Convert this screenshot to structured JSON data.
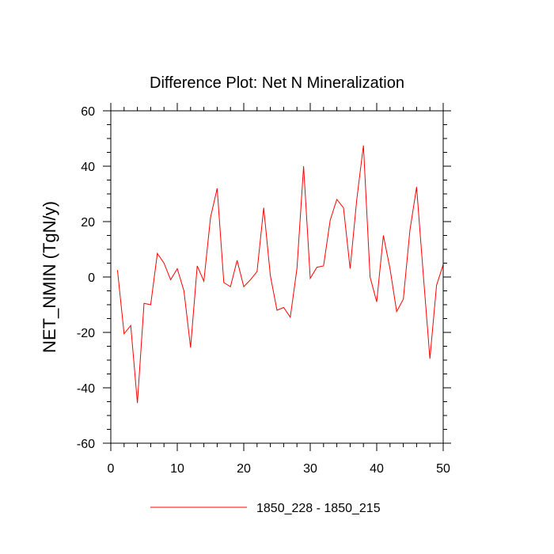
{
  "chart_data": {
    "type": "line",
    "title": "Difference Plot: Net N Mineralization",
    "xlabel": "",
    "ylabel": "NET_NMIN  (TgN/y)",
    "xlim": [
      0,
      50
    ],
    "ylim": [
      -60,
      60
    ],
    "x_ticks": [
      0,
      10,
      20,
      30,
      40,
      50
    ],
    "y_ticks": [
      -60,
      -40,
      -20,
      0,
      20,
      40,
      60
    ],
    "x_minor_step": 2,
    "y_minor_step": 5,
    "legend_position": "bottom-center",
    "series": [
      {
        "name": "1850_228 - 1850_215",
        "color": "#ff0000",
        "x": [
          1,
          2,
          3,
          4,
          5,
          6,
          7,
          8,
          9,
          10,
          11,
          12,
          13,
          14,
          15,
          16,
          17,
          18,
          19,
          20,
          21,
          22,
          23,
          24,
          25,
          26,
          27,
          28,
          29,
          30,
          31,
          32,
          33,
          34,
          35,
          36,
          37,
          38,
          39,
          40,
          41,
          42,
          43,
          44,
          45,
          46,
          47,
          48,
          49,
          50
        ],
        "values": [
          2.5,
          -20.5,
          -17.5,
          -45.5,
          -9.5,
          -10,
          8.5,
          5,
          -1,
          3,
          -5,
          -25.5,
          4,
          -1.5,
          21.5,
          32,
          -2,
          -3.5,
          6,
          -3.5,
          -1,
          2,
          25,
          0.5,
          -12,
          -11,
          -14.5,
          3,
          40,
          -0.5,
          3.5,
          4,
          20.5,
          28,
          25,
          3,
          28,
          47.5,
          0,
          -9,
          15,
          3,
          -12.5,
          -8,
          17,
          32.5,
          1,
          -29.5,
          -3,
          4.5
        ]
      }
    ]
  }
}
